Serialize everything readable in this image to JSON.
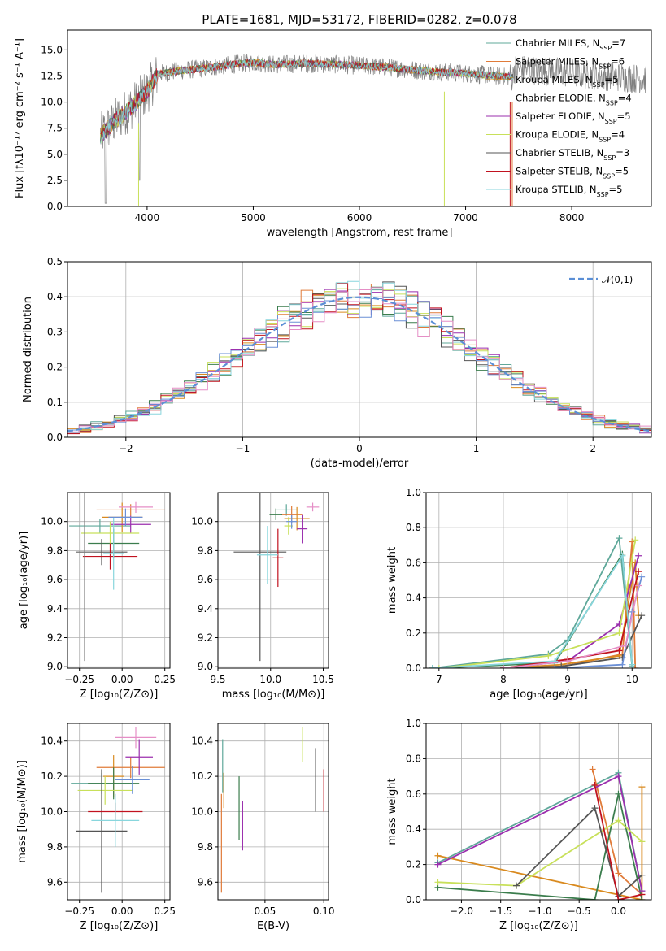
{
  "palette": [
    "#5fa89a",
    "#e07b39",
    "#d98a1f",
    "#3b7d4d",
    "#9b2fae",
    "#c8e05a",
    "#555555",
    "#c1121f",
    "#88d6dd",
    "#6a8fd6",
    "#e58ec6",
    "#7f7f7f"
  ],
  "chart_data": [
    {
      "id": "spectrum",
      "type": "line",
      "title": "PLATE=1681, MJD=53172, FIBERID=0282, z=0.078",
      "xlabel": "wavelength [Angstrom, rest frame]",
      "ylabel": "Flux [fλ10⁻¹⁷ erg cm⁻² s⁻¹ A⁻¹]",
      "xlim": [
        3250,
        8750
      ],
      "ylim": [
        0,
        16.9
      ],
      "xticks": [
        4000,
        5000,
        6000,
        7000,
        8000
      ],
      "yticks": [
        0.0,
        2.5,
        5.0,
        7.5,
        10.0,
        12.5,
        15.0
      ],
      "legend_position": "right",
      "legend": [
        "Chabrier MILES, N_SSP=7",
        "Salpeter MILES, N_SSP=6",
        "Kroupa MILES, N_SSP=5",
        "Chabrier ELODIE, N_SSP=4",
        "Salpeter ELODIE, N_SSP=5",
        "Kroupa ELODIE, N_SSP=4",
        "Chabrier STELIB, N_SSP=3",
        "Salpeter STELIB, N_SSP=5",
        "Kroupa STELIB, N_SSP=5"
      ],
      "legend_colors": [
        "#5fa89a",
        "#e07b39",
        "#d98a1f",
        "#3b7d4d",
        "#9b2fae",
        "#c8e05a",
        "#555555",
        "#c1121f",
        "#88d6dd"
      ],
      "continuum": [
        [
          3560,
          6.8
        ],
        [
          3700,
          8.2
        ],
        [
          3850,
          9.5
        ],
        [
          4000,
          11.0
        ],
        [
          4100,
          12.7
        ],
        [
          4300,
          13.0
        ],
        [
          4500,
          13.2
        ],
        [
          4800,
          13.6
        ],
        [
          5000,
          13.8
        ],
        [
          5200,
          13.6
        ],
        [
          5500,
          13.7
        ],
        [
          5800,
          13.6
        ],
        [
          6000,
          13.5
        ],
        [
          6300,
          13.3
        ],
        [
          6600,
          13.0
        ],
        [
          6900,
          12.8
        ],
        [
          7200,
          12.6
        ],
        [
          7400,
          12.4
        ]
      ]
    },
    {
      "id": "residuals",
      "type": "histogram",
      "xlabel": "(data-model)/error",
      "ylabel": "Normed distribution",
      "xlim": [
        -2.5,
        2.5
      ],
      "ylim": [
        0,
        0.5
      ],
      "xticks": [
        -2,
        -1,
        0,
        1,
        2
      ],
      "yticks": [
        0.0,
        0.1,
        0.2,
        0.3,
        0.4,
        0.5
      ],
      "reference_curve": "𝒩(0,1)",
      "legend_position": "top-right"
    },
    {
      "id": "age-vs-Z",
      "type": "scatter",
      "xlabel": "Z [log₁₀(Z/Z⊙)]",
      "ylabel": "age  [log₁₀(age/yr)]",
      "xlim": [
        -0.32,
        0.28
      ],
      "ylim": [
        8.99,
        10.2
      ],
      "xticks": [
        -0.25,
        0.0,
        0.25
      ],
      "xticklabels": [
        "−0.25",
        "0.00",
        "0.25"
      ],
      "yticks": [
        9.0,
        9.2,
        9.4,
        9.6,
        9.8,
        10.0
      ],
      "points": [
        {
          "x": -0.13,
          "y": 9.97,
          "xerr": 0.18,
          "yerr": 0.05
        },
        {
          "x": 0.05,
          "y": 10.08,
          "xerr": 0.2,
          "yerr": 0.04
        },
        {
          "x": 0.0,
          "y": 10.03,
          "xerr": 0.12,
          "yerr": 0.1
        },
        {
          "x": -0.05,
          "y": 9.85,
          "xerr": 0.15,
          "yerr": 0.1
        },
        {
          "x": 0.05,
          "y": 9.98,
          "xerr": 0.12,
          "yerr": 0.06
        },
        {
          "x": -0.07,
          "y": 9.92,
          "xerr": 0.17,
          "yerr": 0.08
        },
        {
          "x": -0.12,
          "y": 9.79,
          "xerr": 0.15,
          "yerr": 0.09
        },
        {
          "x": -0.07,
          "y": 9.76,
          "xerr": 0.16,
          "yerr": 0.09
        },
        {
          "x": -0.05,
          "y": 9.78,
          "xerr": 0.06,
          "yerr": 0.25
        },
        {
          "x": 0.02,
          "y": 10.03,
          "xerr": 0.1,
          "yerr": 0.06
        },
        {
          "x": 0.08,
          "y": 10.1,
          "xerr": 0.1,
          "yerr": 0.04
        },
        {
          "x": -0.22,
          "y": 9.79,
          "xerr": 0.05,
          "yerr": 0.75
        }
      ]
    },
    {
      "id": "age-vs-mass",
      "type": "scatter",
      "xlabel": "mass [log₁₀(M/M⊙)]",
      "ylabel": "",
      "xlim": [
        9.5,
        10.55
      ],
      "ylim": [
        8.99,
        10.2
      ],
      "xticks": [
        9.5,
        10.0,
        10.5
      ],
      "xticklabels": [
        "9.5",
        "10.0",
        "10.5"
      ],
      "yticks": [
        9.0,
        9.2,
        9.4,
        9.6,
        9.8,
        10.0
      ],
      "points": [
        {
          "x": 10.15,
          "y": 10.08,
          "xerr": 0.1,
          "yerr": 0.04
        },
        {
          "x": 10.2,
          "y": 10.05,
          "xerr": 0.1,
          "yerr": 0.06
        },
        {
          "x": 10.25,
          "y": 10.02,
          "xerr": 0.12,
          "yerr": 0.08
        },
        {
          "x": 10.05,
          "y": 10.05,
          "xerr": 0.06,
          "yerr": 0.04
        },
        {
          "x": 10.3,
          "y": 9.95,
          "xerr": 0.05,
          "yerr": 0.1
        },
        {
          "x": 10.17,
          "y": 9.97,
          "xerr": 0.04,
          "yerr": 0.06
        },
        {
          "x": 9.9,
          "y": 9.79,
          "xerr": 0.25,
          "yerr": 0.75
        },
        {
          "x": 10.07,
          "y": 9.75,
          "xerr": 0.05,
          "yerr": 0.2
        },
        {
          "x": 9.97,
          "y": 9.77,
          "xerr": 0.1,
          "yerr": 0.2
        },
        {
          "x": 10.2,
          "y": 10.0,
          "xerr": 0.05,
          "yerr": 0.05
        },
        {
          "x": 10.4,
          "y": 10.1,
          "xerr": 0.06,
          "yerr": 0.03
        }
      ]
    },
    {
      "id": "weight-vs-age",
      "type": "line",
      "xlabel": "age  [log₁₀(age/yr)]",
      "ylabel": "mass weight",
      "xlim": [
        6.8,
        10.3
      ],
      "ylim": [
        0,
        1.0
      ],
      "xticks": [
        7,
        8,
        9,
        10
      ],
      "yticks": [
        0.0,
        0.2,
        0.4,
        0.6,
        0.8,
        1.0
      ],
      "series": [
        {
          "x": [
            6.9,
            8.7,
            9.0,
            9.8,
            10.0
          ],
          "y": [
            0.0,
            0.08,
            0.16,
            0.74,
            0.01
          ]
        },
        {
          "x": [
            8.0,
            8.8,
            9.85,
            10.0,
            10.05
          ],
          "y": [
            0.0,
            0.0,
            0.08,
            0.72,
            0.0
          ]
        },
        {
          "x": [
            8.0,
            8.9,
            9.8,
            10.05,
            10.1
          ],
          "y": [
            0.0,
            0.02,
            0.07,
            0.6,
            0.3
          ]
        },
        {
          "x": [
            6.9,
            8.8,
            9.85,
            10.0
          ],
          "y": [
            0.0,
            0.03,
            0.65,
            0.02
          ]
        },
        {
          "x": [
            8.0,
            9.0,
            9.8,
            10.1
          ],
          "y": [
            0.0,
            0.04,
            0.25,
            0.64
          ]
        },
        {
          "x": [
            7.0,
            8.7,
            9.8,
            10.05
          ],
          "y": [
            0.0,
            0.07,
            0.2,
            0.73
          ]
        },
        {
          "x": [
            8.0,
            8.9,
            9.85,
            10.15
          ],
          "y": [
            0.0,
            0.01,
            0.06,
            0.3
          ]
        },
        {
          "x": [
            8.0,
            9.0,
            9.8,
            10.1
          ],
          "y": [
            0.0,
            0.05,
            0.1,
            0.55
          ]
        },
        {
          "x": [
            6.9,
            8.8,
            9.85,
            10.0
          ],
          "y": [
            0.0,
            0.04,
            0.64,
            0.02
          ]
        },
        {
          "x": [
            8.8,
            9.85,
            10.0,
            10.15
          ],
          "y": [
            0.0,
            0.02,
            0.32,
            0.52
          ]
        },
        {
          "x": [
            8.0,
            9.0,
            9.9,
            10.1
          ],
          "y": [
            0.0,
            0.04,
            0.13,
            0.47
          ]
        }
      ]
    },
    {
      "id": "mass-vs-Z",
      "type": "scatter",
      "xlabel": "Z [log₁₀(Z/Z⊙)]",
      "ylabel": "mass [log₁₀(M/M⊙)]",
      "xlim": [
        -0.32,
        0.28
      ],
      "ylim": [
        9.5,
        10.5
      ],
      "xticks": [
        -0.25,
        0.0,
        0.25
      ],
      "xticklabels": [
        "−0.25",
        "0.00",
        "0.25"
      ],
      "yticks": [
        9.6,
        9.8,
        10.0,
        10.2,
        10.4
      ],
      "points": [
        {
          "x": -0.12,
          "y": 10.16,
          "xerr": 0.18,
          "yerr": 0.06
        },
        {
          "x": 0.05,
          "y": 10.25,
          "xerr": 0.2,
          "yerr": 0.06
        },
        {
          "x": -0.05,
          "y": 10.2,
          "xerr": 0.06,
          "yerr": 0.12
        },
        {
          "x": -0.05,
          "y": 10.16,
          "xerr": 0.15,
          "yerr": 0.09
        },
        {
          "x": 0.1,
          "y": 10.31,
          "xerr": 0.08,
          "yerr": 0.1
        },
        {
          "x": -0.1,
          "y": 10.12,
          "xerr": 0.16,
          "yerr": 0.08
        },
        {
          "x": -0.12,
          "y": 9.89,
          "xerr": 0.15,
          "yerr": 0.35
        },
        {
          "x": -0.04,
          "y": 10.0,
          "xerr": 0.16,
          "yerr": 0.05
        },
        {
          "x": -0.04,
          "y": 9.95,
          "xerr": 0.14,
          "yerr": 0.15
        },
        {
          "x": 0.06,
          "y": 10.18,
          "xerr": 0.1,
          "yerr": 0.08
        },
        {
          "x": 0.08,
          "y": 10.42,
          "xerr": 0.12,
          "yerr": 0.06
        }
      ]
    },
    {
      "id": "mass-vs-EBV",
      "type": "scatter",
      "xlabel": "E(B-V)",
      "ylabel": "",
      "xlim": [
        0.01,
        0.104
      ],
      "ylim": [
        9.5,
        10.5
      ],
      "xticks": [
        0.05,
        0.1
      ],
      "xticklabels": [
        "0.05",
        "0.10"
      ],
      "yticks": [
        9.6,
        9.8,
        10.0,
        10.2,
        10.4
      ],
      "points": [
        {
          "x": 0.014,
          "y": 10.26,
          "yerr": 0.15
        },
        {
          "x": 0.013,
          "y": 9.82,
          "yerr": 0.28
        },
        {
          "x": 0.015,
          "y": 10.12,
          "yerr": 0.1
        },
        {
          "x": 0.028,
          "y": 10.02,
          "yerr": 0.18
        },
        {
          "x": 0.031,
          "y": 9.92,
          "yerr": 0.14
        },
        {
          "x": 0.082,
          "y": 10.38,
          "yerr": 0.1
        },
        {
          "x": 0.093,
          "y": 10.18,
          "yerr": 0.18
        },
        {
          "x": 0.1,
          "y": 10.12,
          "yerr": 0.12
        }
      ]
    },
    {
      "id": "weight-vs-Z",
      "type": "line",
      "xlabel": "Z [log₁₀(Z/Z⊙)]",
      "ylabel": "mass weight",
      "xlim": [
        -2.45,
        0.42
      ],
      "ylim": [
        0,
        1.0
      ],
      "xticks": [
        -2.0,
        -1.5,
        -1.0,
        -0.5,
        0.0
      ],
      "xticklabels": [
        "−2.0",
        "−1.5",
        "−1.0",
        "−0.5",
        "0.0"
      ],
      "yticks": [
        0.0,
        0.2,
        0.4,
        0.6,
        0.8,
        1.0
      ],
      "series": [
        {
          "x": [
            -2.3,
            0.0,
            0.3
          ],
          "y": [
            0.21,
            0.72,
            0.05
          ]
        },
        {
          "x": [
            -0.33,
            0.0,
            0.3
          ],
          "y": [
            0.74,
            0.15,
            0.03
          ]
        },
        {
          "x": [
            -2.3,
            0.3,
            0.3
          ],
          "y": [
            0.25,
            0.0,
            0.64
          ]
        },
        {
          "x": [
            -2.3,
            -0.3,
            0.0,
            0.3
          ],
          "y": [
            0.07,
            0.0,
            0.6,
            0.0
          ]
        },
        {
          "x": [
            -2.3,
            0.0,
            0.3
          ],
          "y": [
            0.2,
            0.7,
            0.05
          ]
        },
        {
          "x": [
            -2.3,
            -1.3,
            0.0,
            0.3
          ],
          "y": [
            0.1,
            0.08,
            0.45,
            0.33
          ]
        },
        {
          "x": [
            -1.3,
            -0.3,
            0.0,
            0.3
          ],
          "y": [
            0.08,
            0.52,
            0.02,
            0.14
          ]
        },
        {
          "x": [
            -0.3,
            0.0,
            0.3
          ],
          "y": [
            0.65,
            0.0,
            0.03
          ]
        }
      ]
    }
  ]
}
